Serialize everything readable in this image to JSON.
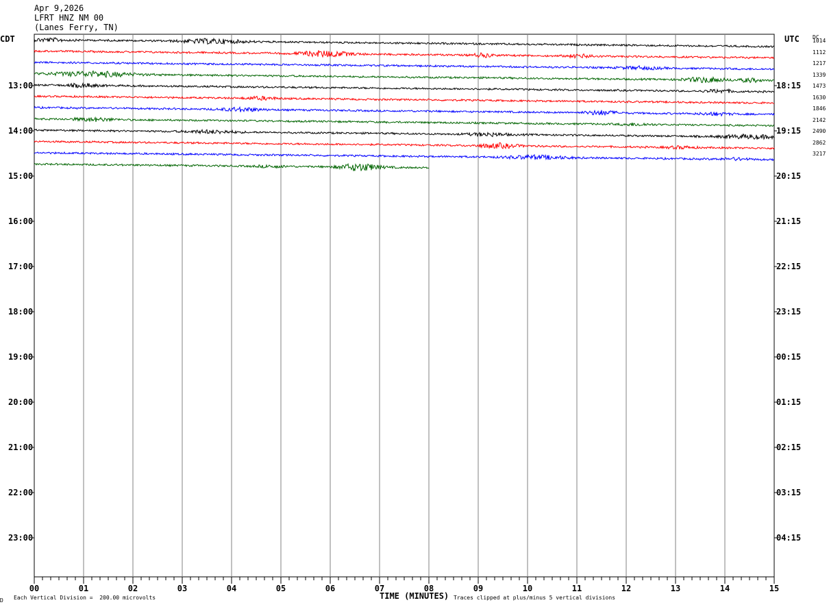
{
  "header": {
    "date": "Apr 9,2026",
    "station": "LFRT HNZ NM 00",
    "location": "(Lanes Ferry, TN)"
  },
  "left_tz": "CDT",
  "right_tz": "UTC",
  "dc_label": "DC",
  "footer": {
    "corner_mark": "Ɒ",
    "vertical_division": "Each Vertical Division =  200.00 microvolts",
    "clip_note": "Traces clipped at plus/minus 5 vertical divisions"
  },
  "colors": {
    "trace_cycle": [
      "#000000",
      "#ff0000",
      "#0000ff",
      "#006400"
    ],
    "grid": "#808080"
  },
  "chart_data": {
    "type": "line",
    "title": "",
    "xlabel": "TIME (MINUTES)",
    "x_range": [
      0,
      15
    ],
    "x_ticks": [
      "00",
      "01",
      "02",
      "03",
      "04",
      "05",
      "06",
      "07",
      "08",
      "09",
      "10",
      "11",
      "12",
      "13",
      "14",
      "15"
    ],
    "left_hour_labels": [
      "13:00",
      "14:00",
      "15:00",
      "16:00",
      "17:00",
      "18:00",
      "19:00",
      "20:00",
      "21:00",
      "22:00",
      "23:00"
    ],
    "right_hour_labels": [
      "18:15",
      "19:15",
      "20:15",
      "21:15",
      "22:15",
      "23:15",
      "00:15",
      "01:15",
      "02:15",
      "03:15",
      "04:15"
    ],
    "grid": true,
    "traces": [
      {
        "dc": "1014",
        "end_minute": 15,
        "bursts": [
          [
            3.6,
            0.6,
            3.0
          ],
          [
            0.3,
            0.4,
            2.0
          ]
        ]
      },
      {
        "dc": "1112",
        "end_minute": 15,
        "bursts": [
          [
            5.9,
            0.5,
            4.0
          ],
          [
            9.1,
            0.2,
            2.5
          ],
          [
            11.1,
            0.3,
            2.0
          ]
        ]
      },
      {
        "dc": "1217",
        "end_minute": 15,
        "bursts": [
          [
            12.3,
            0.4,
            1.8
          ]
        ]
      },
      {
        "dc": "1339",
        "end_minute": 15,
        "bursts": [
          [
            1.2,
            0.8,
            3.5
          ],
          [
            13.6,
            0.4,
            3.5
          ],
          [
            14.5,
            0.2,
            2.5
          ]
        ]
      },
      {
        "dc": "1473",
        "end_minute": 15,
        "bursts": [
          [
            1.0,
            0.3,
            2.5
          ],
          [
            13.9,
            0.3,
            2.0
          ]
        ]
      },
      {
        "dc": "1630",
        "end_minute": 15,
        "bursts": [
          [
            4.6,
            0.3,
            2.0
          ]
        ]
      },
      {
        "dc": "1846",
        "end_minute": 15,
        "bursts": [
          [
            4.2,
            0.4,
            2.5
          ],
          [
            11.5,
            0.3,
            3.0
          ],
          [
            13.8,
            0.3,
            1.8
          ]
        ]
      },
      {
        "dc": "2142",
        "end_minute": 15,
        "bursts": [
          [
            1.2,
            0.4,
            2.2
          ],
          [
            12.2,
            0.3,
            1.6
          ]
        ]
      },
      {
        "dc": "2490",
        "end_minute": 15,
        "bursts": [
          [
            3.6,
            0.5,
            2.0
          ],
          [
            9.2,
            0.4,
            2.0
          ],
          [
            14.5,
            0.6,
            2.5
          ]
        ]
      },
      {
        "dc": "2862",
        "end_minute": 15,
        "bursts": [
          [
            9.4,
            0.4,
            3.0
          ],
          [
            13.1,
            0.3,
            1.5
          ]
        ]
      },
      {
        "dc": "3217",
        "end_minute": 15,
        "bursts": [
          [
            10.2,
            0.6,
            2.5
          ],
          [
            14.2,
            0.3,
            1.5
          ]
        ]
      },
      {
        "dc": "",
        "end_minute": 8,
        "bursts": [
          [
            6.6,
            0.4,
            5.0
          ],
          [
            4.8,
            0.3,
            1.5
          ]
        ]
      }
    ]
  }
}
